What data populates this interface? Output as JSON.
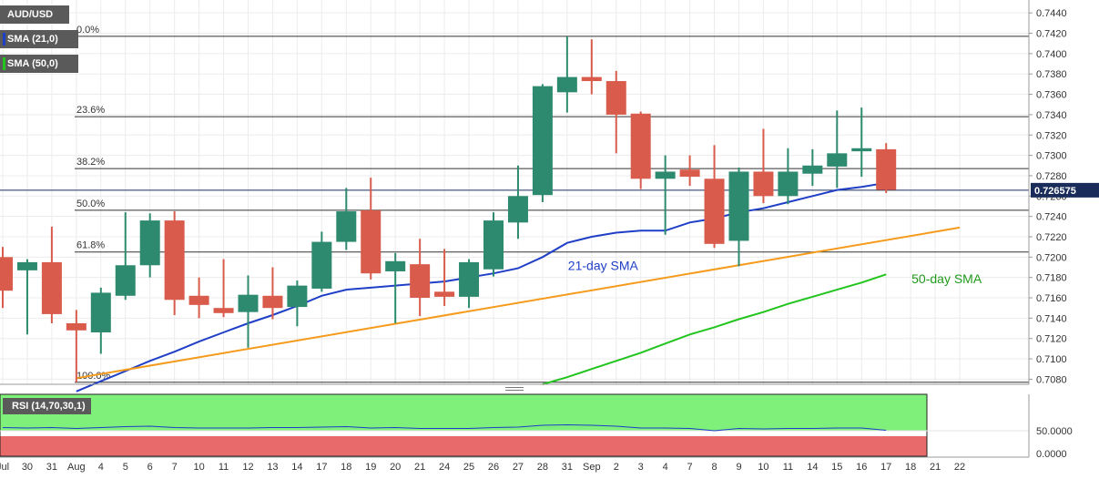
{
  "legend": {
    "symbol": "AUD/USD",
    "sma21_label": "SMA (21,0)",
    "sma50_label": "SMA (50,0)",
    "rsi_label": "RSI (14,70,30,1)"
  },
  "colors": {
    "bull": "#2d8a6e",
    "bear": "#d95b4b",
    "sma21": "#1f3fc7",
    "sma50": "#22c41e",
    "trendline": "#f59b1c",
    "rsi_overbought": "#7ff07a",
    "rsi_oversold": "#e86a6a",
    "price_label_bg": "#1a2d5a"
  },
  "current_price": "0.726575",
  "chart_data": [
    {
      "type": "candlestick",
      "title": "AUD/USD",
      "x_labels": [
        "Jul",
        "30",
        "31",
        "Aug",
        "4",
        "5",
        "6",
        "7",
        "10",
        "11",
        "12",
        "13",
        "14",
        "17",
        "18",
        "19",
        "20",
        "21",
        "24",
        "25",
        "26",
        "27",
        "28",
        "31",
        "Sep",
        "2",
        "3",
        "4",
        "7",
        "8",
        "9",
        "10",
        "11",
        "14",
        "15",
        "16",
        "17",
        "18",
        "21",
        "22"
      ],
      "ylim": [
        0.7075,
        0.745
      ],
      "y_ticks": [
        0.708,
        0.71,
        0.712,
        0.714,
        0.716,
        0.718,
        0.72,
        0.722,
        0.724,
        0.726,
        0.728,
        0.73,
        0.732,
        0.734,
        0.736,
        0.738,
        0.74,
        0.742,
        0.744
      ],
      "ohlc": [
        [
          0.72,
          0.721,
          0.715,
          0.7167
        ],
        [
          0.7187,
          0.7198,
          0.7124,
          0.7195
        ],
        [
          0.7195,
          0.723,
          0.7135,
          0.7144
        ],
        [
          0.7135,
          0.7148,
          0.7077,
          0.7128
        ],
        [
          0.7126,
          0.717,
          0.7105,
          0.7165
        ],
        [
          0.7162,
          0.7244,
          0.7158,
          0.7192
        ],
        [
          0.7192,
          0.7243,
          0.718,
          0.7236
        ],
        [
          0.7236,
          0.7245,
          0.7143,
          0.7158
        ],
        [
          0.7162,
          0.718,
          0.714,
          0.7153
        ],
        [
          0.715,
          0.7198,
          0.7141,
          0.7145
        ],
        [
          0.7146,
          0.7182,
          0.7111,
          0.7163
        ],
        [
          0.7162,
          0.719,
          0.7139,
          0.715
        ],
        [
          0.7151,
          0.7177,
          0.7132,
          0.7172
        ],
        [
          0.7169,
          0.7225,
          0.7166,
          0.7215
        ],
        [
          0.7215,
          0.7268,
          0.7207,
          0.7245
        ],
        [
          0.7246,
          0.7278,
          0.7178,
          0.7184
        ],
        [
          0.7186,
          0.7204,
          0.7135,
          0.7196
        ],
        [
          0.7193,
          0.7218,
          0.7142,
          0.716
        ],
        [
          0.7166,
          0.7208,
          0.7152,
          0.7161
        ],
        [
          0.7161,
          0.7198,
          0.715,
          0.7195
        ],
        [
          0.7188,
          0.7244,
          0.7181,
          0.7236
        ],
        [
          0.7234,
          0.729,
          0.7218,
          0.726
        ],
        [
          0.7261,
          0.737,
          0.7254,
          0.7368
        ],
        [
          0.7362,
          0.7417,
          0.7342,
          0.7377
        ],
        [
          0.7377,
          0.7414,
          0.736,
          0.7373
        ],
        [
          0.7373,
          0.7383,
          0.7302,
          0.734
        ],
        [
          0.7341,
          0.7343,
          0.7267,
          0.7277
        ],
        [
          0.7277,
          0.73,
          0.7222,
          0.7284
        ],
        [
          0.7286,
          0.73,
          0.727,
          0.7279
        ],
        [
          0.7277,
          0.731,
          0.7209,
          0.7213
        ],
        [
          0.7216,
          0.7288,
          0.7191,
          0.7284
        ],
        [
          0.7284,
          0.7326,
          0.7253,
          0.726
        ],
        [
          0.726,
          0.7307,
          0.7252,
          0.7284
        ],
        [
          0.7282,
          0.7306,
          0.727,
          0.729
        ],
        [
          0.7289,
          0.7344,
          0.7268,
          0.7302
        ],
        [
          0.7304,
          0.7347,
          0.7279,
          0.7307
        ],
        [
          0.7306,
          0.7312,
          0.7263,
          0.7266
        ]
      ],
      "series": [
        {
          "name": "21-day SMA",
          "values": [
            null,
            null,
            null,
            0.7068,
            0.7078,
            0.7088,
            0.7098,
            0.7107,
            0.7117,
            0.7126,
            0.7135,
            0.7143,
            0.7152,
            0.7162,
            0.7168,
            0.717,
            0.7172,
            0.7174,
            0.7176,
            0.718,
            0.7184,
            0.7189,
            0.72,
            0.7214,
            0.722,
            0.7224,
            0.7226,
            0.7226,
            0.7234,
            0.7238,
            0.7244,
            0.7248,
            0.7254,
            0.726,
            0.7266,
            0.7269,
            0.7273
          ]
        },
        {
          "name": "50-day SMA",
          "values": [
            null,
            null,
            null,
            null,
            null,
            null,
            null,
            null,
            null,
            null,
            null,
            null,
            null,
            null,
            null,
            null,
            null,
            null,
            null,
            null,
            null,
            null,
            0.7075,
            0.7082,
            0.709,
            0.7098,
            0.7106,
            0.7115,
            0.7124,
            0.7131,
            0.7139,
            0.7146,
            0.7154,
            0.7161,
            0.7168,
            0.7175,
            0.7183
          ]
        },
        {
          "name": "trend line",
          "values": [
            null,
            null,
            null,
            0.7081,
            null,
            null,
            null,
            null,
            null,
            null,
            null,
            null,
            null,
            null,
            null,
            null,
            null,
            null,
            null,
            null,
            null,
            null,
            null,
            null,
            null,
            null,
            null,
            null,
            null,
            null,
            null,
            null,
            null,
            null,
            null,
            null,
            null,
            null,
            null,
            0.7229
          ]
        }
      ],
      "fibonacci": [
        {
          "label": "0.0%",
          "value": 0.7417
        },
        {
          "label": "23.6%",
          "value": 0.7338
        },
        {
          "label": "38.2%",
          "value": 0.7287
        },
        {
          "label": "50.0%",
          "value": 0.7246
        },
        {
          "label": "61.8%",
          "value": 0.7205
        },
        {
          "label": "100.0%",
          "value": 0.7077
        }
      ],
      "annotations": [
        {
          "text": "21-day SMA",
          "near": 0.719
        },
        {
          "text": "50-day SMA",
          "near": 0.7177
        }
      ],
      "current_price_line": 0.726575
    },
    {
      "type": "line",
      "title": "RSI (14,70,30,1)",
      "ylim": [
        0,
        100
      ],
      "y_ticks": [
        0.0,
        50.0
      ],
      "y_tick_labels": [
        "0.0000",
        "50.0000"
      ],
      "overbought": 70,
      "oversold": 30,
      "values": [
        57,
        56,
        57,
        55,
        57,
        59,
        60,
        57,
        56,
        56,
        56,
        57,
        57,
        58,
        59,
        56,
        57,
        55,
        55,
        55,
        57,
        58,
        62,
        63,
        62,
        60,
        56,
        56,
        55,
        50,
        55,
        54,
        55,
        55,
        56,
        56,
        51
      ]
    }
  ]
}
